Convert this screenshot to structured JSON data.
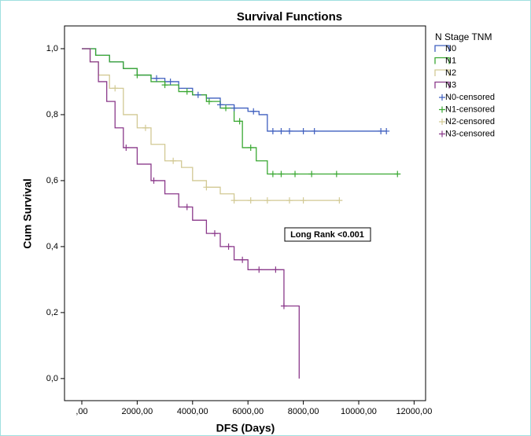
{
  "chart_data": {
    "type": "line",
    "step": true,
    "title": "Survival Functions",
    "x_label": "DFS (Days)",
    "y_label": "Cum Survival",
    "legend_title": "N Stage TNM",
    "legend_position": "right",
    "annotation": "Long Rank <0.001",
    "xlim": [
      -625,
      12415
    ],
    "ylim": [
      -0.067,
      1.069
    ],
    "xticks": [
      {
        "value": 0,
        "label": ",00"
      },
      {
        "value": 2000,
        "label": "2000,00"
      },
      {
        "value": 4000,
        "label": "4000,00"
      },
      {
        "value": 6000,
        "label": "6000,00"
      },
      {
        "value": 8000,
        "label": "8000,00"
      },
      {
        "value": 10000,
        "label": "10000,00"
      },
      {
        "value": 12000,
        "label": "12000,00"
      }
    ],
    "yticks": [
      {
        "value": 0,
        "label": "0,0"
      },
      {
        "value": 0.2,
        "label": "0,2"
      },
      {
        "value": 0.4,
        "label": "0,4"
      },
      {
        "value": 0.6,
        "label": "0,6"
      },
      {
        "value": 0.8,
        "label": "0,8"
      },
      {
        "value": 1,
        "label": "1,0"
      }
    ],
    "series": [
      {
        "name": "N0",
        "color": "#3f5fbf",
        "x": [
          0,
          500,
          1000,
          1500,
          2000,
          2500,
          3000,
          3500,
          4000,
          4500,
          5000,
          5500,
          6000,
          6400,
          6700,
          11000
        ],
        "values": [
          1,
          0.98,
          0.96,
          0.94,
          0.92,
          0.91,
          0.9,
          0.88,
          0.86,
          0.85,
          0.83,
          0.82,
          0.81,
          0.8,
          0.75,
          0.75
        ]
      },
      {
        "name": "N1",
        "color": "#3aa832",
        "x": [
          0,
          500,
          1000,
          1500,
          2000,
          2500,
          3000,
          3500,
          4000,
          4500,
          5000,
          5500,
          5800,
          6300,
          6700,
          11400
        ],
        "values": [
          1,
          0.98,
          0.96,
          0.94,
          0.92,
          0.9,
          0.89,
          0.87,
          0.86,
          0.84,
          0.82,
          0.78,
          0.7,
          0.66,
          0.62,
          0.62
        ]
      },
      {
        "name": "N2",
        "color": "#d2c994",
        "x": [
          0,
          300,
          600,
          1000,
          1500,
          2000,
          2500,
          3000,
          3600,
          4000,
          4500,
          5000,
          5500,
          9300
        ],
        "values": [
          1,
          0.96,
          0.92,
          0.88,
          0.8,
          0.76,
          0.71,
          0.66,
          0.64,
          0.6,
          0.58,
          0.56,
          0.54,
          0.54
        ]
      },
      {
        "name": "N3",
        "color": "#8b3a8b",
        "x": [
          0,
          300,
          600,
          900,
          1200,
          1500,
          2000,
          2500,
          3000,
          3500,
          4000,
          4500,
          5000,
          5500,
          6000,
          7300,
          7850
        ],
        "values": [
          1,
          0.96,
          0.9,
          0.84,
          0.76,
          0.7,
          0.65,
          0.6,
          0.56,
          0.52,
          0.48,
          0.44,
          0.4,
          0.36,
          0.33,
          0.22,
          0
        ]
      },
      {
        "name": "N0-censored",
        "color": "#3f5fbf",
        "marker": "+",
        "x": [
          2700,
          3200,
          4200,
          5000,
          5500,
          6200,
          6900,
          7200,
          7500,
          8000,
          8400,
          10800,
          11000
        ],
        "values": [
          0.91,
          0.9,
          0.86,
          0.83,
          0.82,
          0.81,
          0.75,
          0.75,
          0.75,
          0.75,
          0.75,
          0.75,
          0.75
        ]
      },
      {
        "name": "N1-censored",
        "color": "#3aa832",
        "marker": "+",
        "x": [
          2000,
          3000,
          3800,
          4600,
          5200,
          5700,
          6100,
          6900,
          7200,
          7700,
          8300,
          9200,
          11400
        ],
        "values": [
          0.92,
          0.89,
          0.87,
          0.84,
          0.82,
          0.78,
          0.7,
          0.62,
          0.62,
          0.62,
          0.62,
          0.62,
          0.62
        ]
      },
      {
        "name": "N2-censored",
        "color": "#d2c994",
        "marker": "+",
        "x": [
          1200,
          2300,
          3300,
          4500,
          5500,
          6100,
          6700,
          7500,
          8000,
          9300
        ],
        "values": [
          0.88,
          0.76,
          0.66,
          0.58,
          0.54,
          0.54,
          0.54,
          0.54,
          0.54,
          0.54
        ]
      },
      {
        "name": "N3-censored",
        "color": "#8b3a8b",
        "marker": "+",
        "x": [
          1600,
          2600,
          3800,
          4800,
          5300,
          5800,
          6400,
          7000,
          7300
        ],
        "values": [
          0.7,
          0.6,
          0.52,
          0.44,
          0.4,
          0.36,
          0.33,
          0.33,
          0.22
        ]
      }
    ]
  }
}
